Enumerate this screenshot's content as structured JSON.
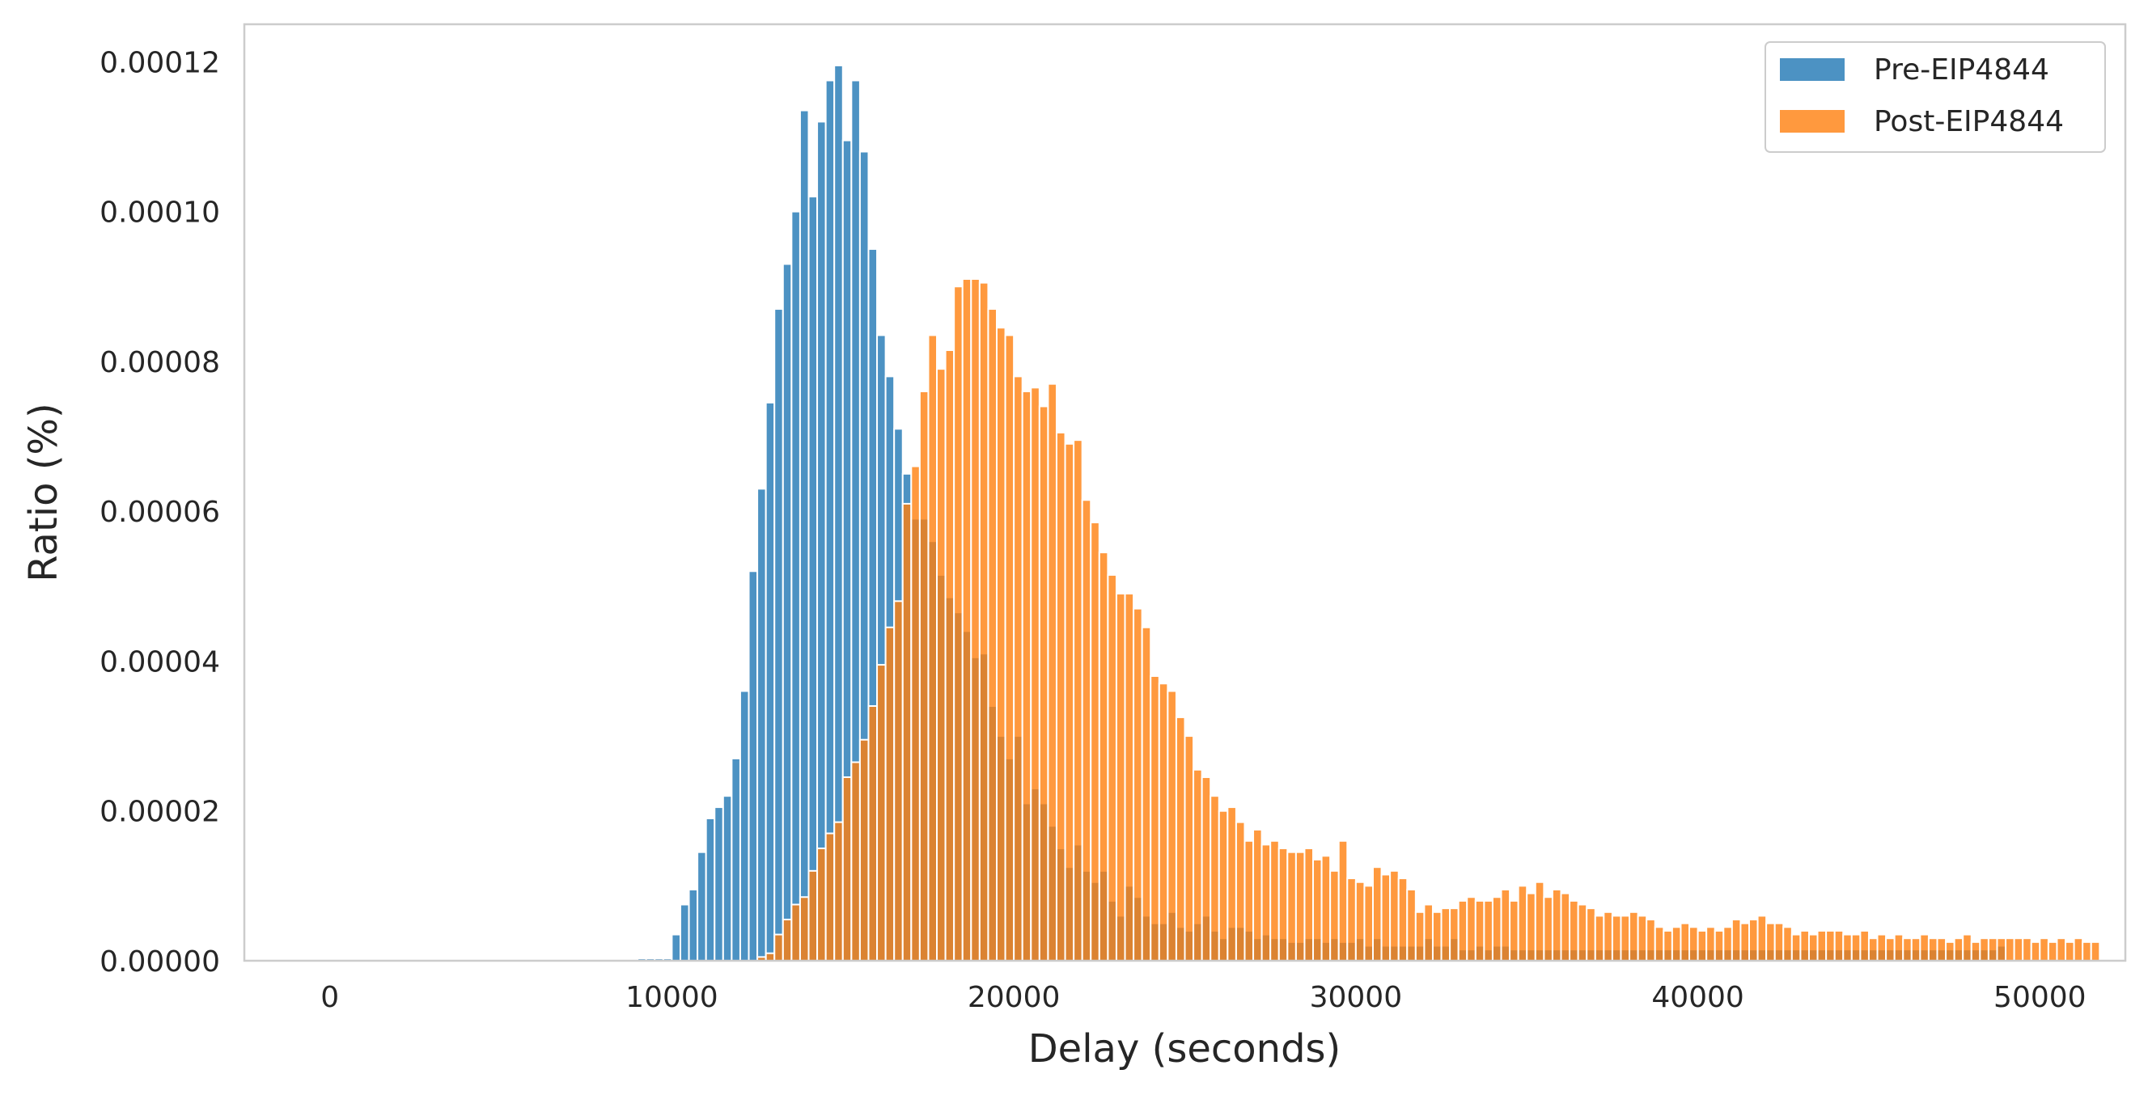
{
  "chart_data": {
    "type": "bar",
    "subtype": "histogram",
    "title": "",
    "xlabel": "Delay (seconds)",
    "ylabel": "Ratio (%)",
    "xlim": [
      -2500,
      52500
    ],
    "ylim": [
      0,
      0.000125
    ],
    "bin_start": 8000,
    "bin_width": 250,
    "xticks": [
      0,
      10000,
      20000,
      30000,
      40000,
      50000
    ],
    "xtick_labels": [
      "0",
      "10000",
      "20000",
      "30000",
      "40000",
      "50000"
    ],
    "yticks": [
      0,
      2e-05,
      4e-05,
      6e-05,
      8e-05,
      0.0001,
      0.00012
    ],
    "ytick_labels": [
      "0.00000",
      "0.00002",
      "0.00004",
      "0.00006",
      "0.00008",
      "0.00010",
      "0.00012"
    ],
    "grid": false,
    "legend": {
      "placement": "upper-right"
    },
    "series": [
      {
        "name": "Pre-EIP4844",
        "color": "#1f77b4",
        "opacity": 0.8,
        "values": [
          1e-07,
          1e-07,
          1e-07,
          1e-07,
          3e-07,
          3e-07,
          3e-07,
          3e-07,
          3.5e-06,
          7.5e-06,
          9.5e-06,
          1.45e-05,
          1.9e-05,
          2.05e-05,
          2.2e-05,
          2.7e-05,
          3.6e-05,
          5.2e-05,
          6.3e-05,
          7.45e-05,
          8.7e-05,
          9.3e-05,
          0.0001,
          0.0001135,
          0.000102,
          0.000112,
          0.0001175,
          0.0001195,
          0.0001095,
          0.0001175,
          0.000108,
          9.5e-05,
          8.35e-05,
          7.8e-05,
          7.1e-05,
          6.5e-05,
          5.9e-05,
          5.9e-05,
          5.6e-05,
          5.15e-05,
          4.85e-05,
          4.65e-05,
          4.4e-05,
          4.05e-05,
          4.1e-05,
          3.4e-05,
          3e-05,
          2.7e-05,
          3e-05,
          2.1e-05,
          2.3e-05,
          2.1e-05,
          1.8e-05,
          1.5e-05,
          1.25e-05,
          1.55e-05,
          1.2e-05,
          1.05e-05,
          1.2e-05,
          8e-06,
          6e-06,
          1e-05,
          8.5e-06,
          6e-06,
          5e-06,
          5e-06,
          6.5e-06,
          4.5e-06,
          4e-06,
          5e-06,
          6e-06,
          4e-06,
          3e-06,
          4.5e-06,
          4.5e-06,
          4e-06,
          3e-06,
          3.5e-06,
          3e-06,
          3e-06,
          2.5e-06,
          2.5e-06,
          3e-06,
          3e-06,
          2.5e-06,
          3e-06,
          2.5e-06,
          2.5e-06,
          3e-06,
          2e-06,
          3e-06,
          2e-06,
          2e-06,
          2e-06,
          2e-06,
          2e-06,
          3e-06,
          2e-06,
          2e-06,
          3e-06,
          1.5e-06,
          1.5e-06,
          2e-06,
          1.5e-06,
          2e-06,
          2e-06,
          1.5e-06,
          1.5e-06,
          1.5e-06,
          1.5e-06,
          1.5e-06,
          1.5e-06,
          1.5e-06,
          1.5e-06,
          1.5e-06,
          1.5e-06,
          1.5e-06,
          1.5e-06,
          1.5e-06,
          1.5e-06,
          1.5e-06,
          1.5e-06,
          1.5e-06,
          1.5e-06,
          1.5e-06,
          1.5e-06,
          1.5e-06,
          1.5e-06,
          1.5e-06,
          1.5e-06,
          1.5e-06,
          1.5e-06,
          1.5e-06,
          1.5e-06,
          1.5e-06,
          1.5e-06,
          1.5e-06,
          1.5e-06,
          1.5e-06,
          1.5e-06,
          1.5e-06,
          1.5e-06,
          1.5e-06,
          1.5e-06,
          1.5e-06,
          1.5e-06,
          1.5e-06,
          1.5e-06,
          1.5e-06,
          1.5e-06,
          1.5e-06,
          1.5e-06,
          1.5e-06,
          1.5e-06,
          1.5e-06,
          1.5e-06,
          1.5e-06,
          1.5e-06,
          1.5e-06,
          1.5e-06,
          1.5e-06,
          1.5e-06,
          1.5e-06,
          2e-06
        ]
      },
      {
        "name": "Post-EIP4844",
        "color": "#ff7f0e",
        "opacity": 0.8,
        "values": [
          0,
          0,
          0,
          0,
          0,
          0,
          0,
          0,
          0,
          0,
          0,
          0,
          0,
          0,
          0,
          0,
          0,
          0,
          5e-07,
          1e-06,
          3.5e-06,
          5.5e-06,
          7.5e-06,
          8.5e-06,
          1.2e-05,
          1.5e-05,
          1.7e-05,
          1.85e-05,
          2.45e-05,
          2.65e-05,
          2.95e-05,
          3.4e-05,
          3.95e-05,
          4.45e-05,
          4.8e-05,
          6.1e-05,
          6.6e-05,
          7.6e-05,
          8.35e-05,
          7.9e-05,
          8.15e-05,
          9e-05,
          9.1e-05,
          9.1e-05,
          9.05e-05,
          8.7e-05,
          8.45e-05,
          8.35e-05,
          7.8e-05,
          7.6e-05,
          7.65e-05,
          7.4e-05,
          7.7e-05,
          7.05e-05,
          6.9e-05,
          6.95e-05,
          6.15e-05,
          5.85e-05,
          5.45e-05,
          5.15e-05,
          4.9e-05,
          4.9e-05,
          4.7e-05,
          4.45e-05,
          3.8e-05,
          3.7e-05,
          3.6e-05,
          3.25e-05,
          3e-05,
          2.55e-05,
          2.45e-05,
          2.2e-05,
          2e-05,
          2.05e-05,
          1.85e-05,
          1.6e-05,
          1.75e-05,
          1.55e-05,
          1.6e-05,
          1.5e-05,
          1.45e-05,
          1.45e-05,
          1.5e-05,
          1.35e-05,
          1.4e-05,
          1.2e-05,
          1.6e-05,
          1.1e-05,
          1.05e-05,
          1e-05,
          1.25e-05,
          1.15e-05,
          1.2e-05,
          1.1e-05,
          9.5e-06,
          6.5e-06,
          7.5e-06,
          6.5e-06,
          7e-06,
          7e-06,
          8e-06,
          8.5e-06,
          8e-06,
          8e-06,
          8.5e-06,
          9.5e-06,
          8e-06,
          1e-05,
          9e-06,
          1.05e-05,
          8.5e-06,
          9.5e-06,
          9e-06,
          8e-06,
          7.5e-06,
          7e-06,
          6e-06,
          6.5e-06,
          6e-06,
          6e-06,
          6.5e-06,
          6e-06,
          5.5e-06,
          4.5e-06,
          4e-06,
          4.5e-06,
          5e-06,
          4.5e-06,
          4e-06,
          4.5e-06,
          4e-06,
          4.5e-06,
          5.5e-06,
          5e-06,
          5.5e-06,
          6e-06,
          5e-06,
          5e-06,
          4.5e-06,
          3.5e-06,
          4e-06,
          3.5e-06,
          4e-06,
          4e-06,
          4e-06,
          3.5e-06,
          3.5e-06,
          4e-06,
          3e-06,
          3.5e-06,
          3e-06,
          3.5e-06,
          3e-06,
          3e-06,
          3.5e-06,
          3e-06,
          3e-06,
          2.5e-06,
          3e-06,
          3.5e-06,
          2.5e-06,
          3e-06,
          3e-06,
          3e-06,
          3e-06,
          3e-06,
          3e-06,
          2.5e-06,
          3e-06,
          2.5e-06,
          3e-06,
          2.5e-06,
          3e-06,
          2.5e-06,
          2.5e-06,
          0
        ]
      }
    ]
  }
}
